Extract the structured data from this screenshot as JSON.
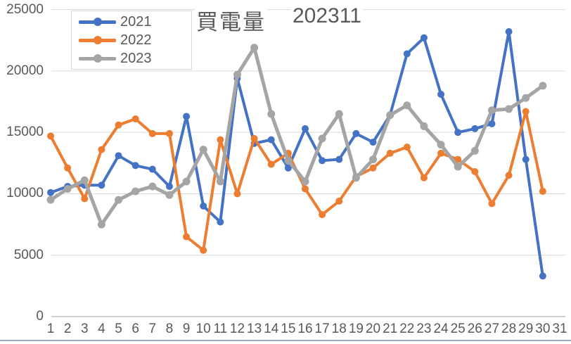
{
  "title": {
    "text": "買電量",
    "period": "202311"
  },
  "legend": {
    "position": "top-left",
    "items": [
      {
        "label": "2021",
        "color": "#4472C4"
      },
      {
        "label": "2022",
        "color": "#ED7D31"
      },
      {
        "label": "2023",
        "color": "#A5A5A5"
      }
    ]
  },
  "colors": {
    "gridline": "#D9D9D9",
    "axis_line": "#BFBFBF",
    "tick_text": "#595959",
    "frame_edge": "#9BADC8"
  },
  "chart_data": {
    "type": "line",
    "title": "買電量 202311",
    "xlabel": "",
    "ylabel": "",
    "grid": true,
    "legend_position": "top-left",
    "x_categories": [
      "1",
      "2",
      "3",
      "4",
      "5",
      "6",
      "7",
      "8",
      "9",
      "10",
      "11",
      "12",
      "13",
      "14",
      "15",
      "16",
      "17",
      "18",
      "19",
      "20",
      "21",
      "22",
      "23",
      "24",
      "25",
      "26",
      "27",
      "28",
      "29",
      "30",
      "31"
    ],
    "y_axis": {
      "min": 0,
      "max": 25000,
      "step": 5000,
      "tick_labels": [
        "0",
        "5000",
        "10000",
        "15000",
        "20000",
        "25000"
      ]
    },
    "series": [
      {
        "name": "2021",
        "color": "#4472C4",
        "values": [
          10100,
          10600,
          10700,
          10700,
          13100,
          12300,
          12000,
          10600,
          16300,
          9000,
          7700,
          19400,
          14100,
          14400,
          12100,
          15300,
          12700,
          12800,
          14900,
          14200,
          16400,
          21400,
          22700,
          18100,
          15000,
          15300,
          15700,
          23200,
          12800,
          3300
        ]
      },
      {
        "name": "2022",
        "color": "#ED7D31",
        "values": [
          14700,
          12100,
          9600,
          13600,
          15600,
          16100,
          14900,
          14900,
          6500,
          5400,
          14400,
          10000,
          14500,
          12400,
          13300,
          10400,
          8300,
          9400,
          11400,
          12100,
          13300,
          13800,
          11300,
          13300,
          12800,
          11800,
          9200,
          11500,
          16700,
          10200
        ]
      },
      {
        "name": "2023",
        "color": "#A5A5A5",
        "values": [
          9500,
          10400,
          11100,
          7500,
          9500,
          10200,
          10600,
          9900,
          11000,
          13600,
          11000,
          19700,
          21900,
          16500,
          12700,
          11000,
          14500,
          16500,
          11300,
          12800,
          16400,
          17200,
          15500,
          14000,
          12200,
          13500,
          16800,
          16900,
          17800,
          18800
        ]
      }
    ]
  }
}
